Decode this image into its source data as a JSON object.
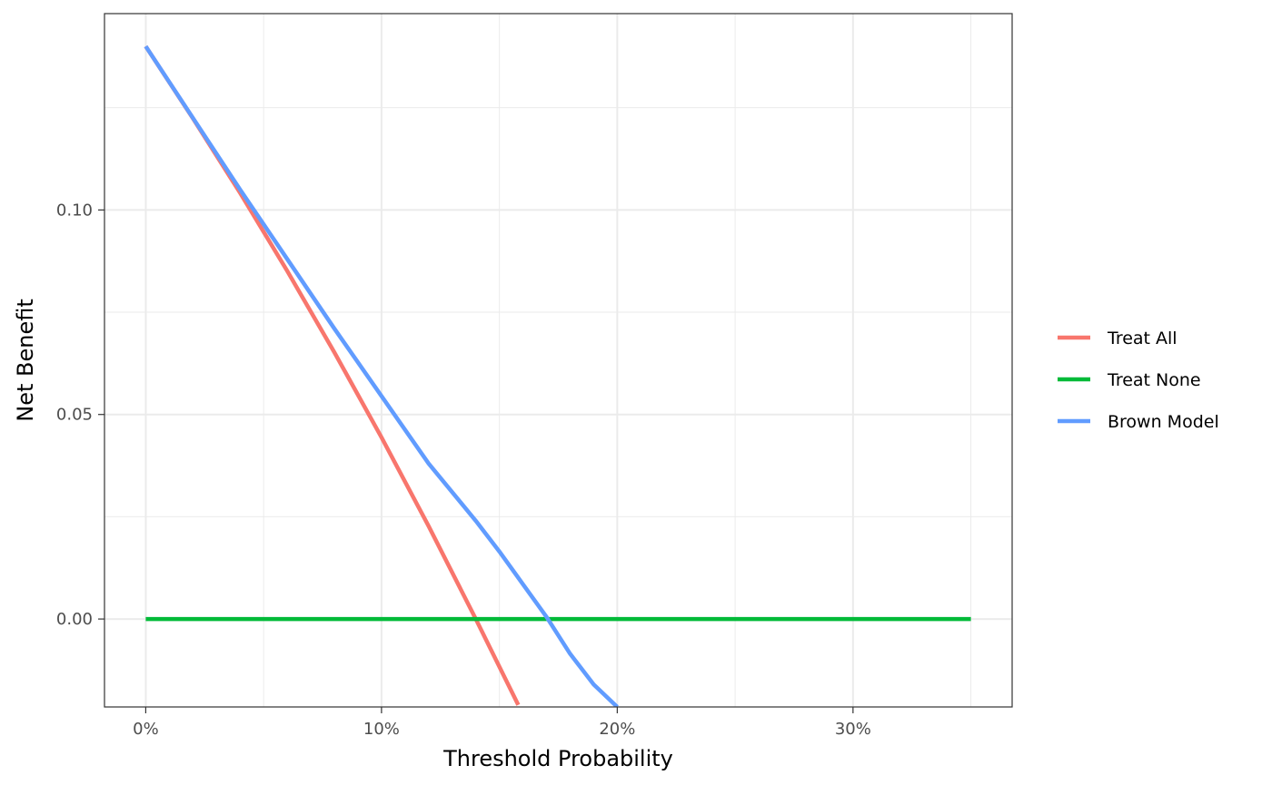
{
  "chart_data": {
    "type": "line",
    "title": "",
    "xlabel": "Threshold Probability",
    "ylabel": "Net Benefit",
    "xlim": [
      -0.0175,
      0.3675
    ],
    "ylim": [
      -0.0215,
      0.148
    ],
    "x_ticks": [
      {
        "value": 0.0,
        "label": "0%"
      },
      {
        "value": 0.1,
        "label": "10%"
      },
      {
        "value": 0.2,
        "label": "20%"
      },
      {
        "value": 0.3,
        "label": "30%"
      }
    ],
    "y_ticks": [
      {
        "value": 0.0,
        "label": "0.00"
      },
      {
        "value": 0.05,
        "label": "0.05"
      },
      {
        "value": 0.1,
        "label": "0.10"
      }
    ],
    "grid": true,
    "legend_position": "right",
    "series": [
      {
        "name": "Treat All",
        "color": "#F8766D",
        "x": [
          0.0,
          0.02,
          0.04,
          0.06,
          0.08,
          0.1,
          0.12,
          0.14,
          0.158
        ],
        "y": [
          0.14,
          0.1224,
          0.1042,
          0.0851,
          0.0652,
          0.0444,
          0.0227,
          0.0,
          -0.021
        ]
      },
      {
        "name": "Treat None",
        "color": "#00BA38",
        "x": [
          0.0,
          0.35
        ],
        "y": [
          0.0,
          0.0
        ]
      },
      {
        "name": "Brown Model",
        "color": "#619CFF",
        "x": [
          0.0,
          0.02,
          0.04,
          0.06,
          0.08,
          0.1,
          0.12,
          0.14,
          0.15,
          0.16,
          0.17,
          0.18,
          0.19,
          0.2
        ],
        "y": [
          0.14,
          0.1225,
          0.105,
          0.088,
          0.071,
          0.0545,
          0.038,
          0.024,
          0.0165,
          0.0085,
          0.0005,
          -0.0085,
          -0.016,
          -0.0215
        ]
      }
    ]
  }
}
